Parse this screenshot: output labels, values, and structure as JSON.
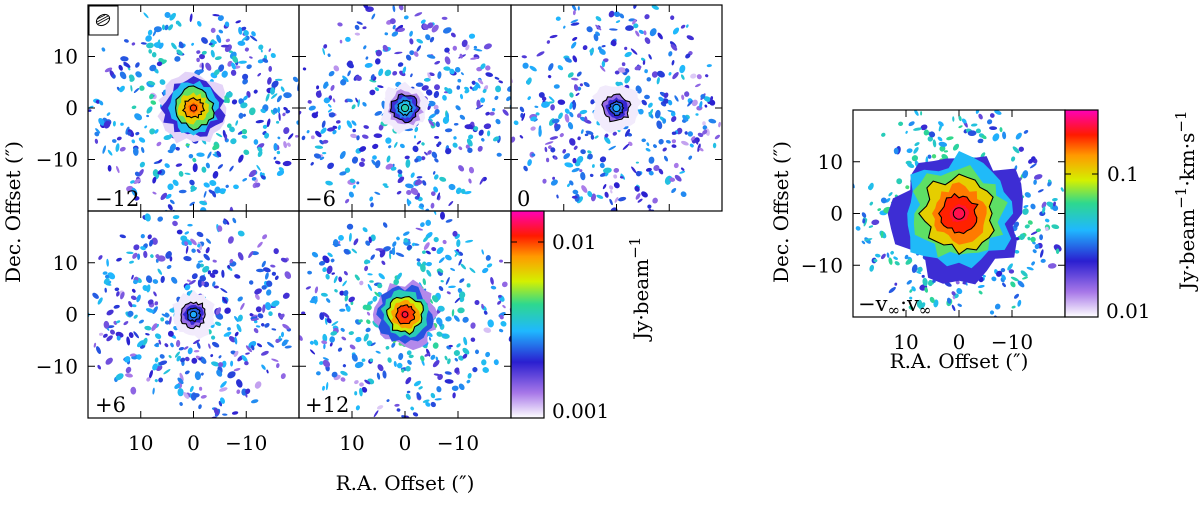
{
  "chart_data": {
    "type": "heatmap",
    "description_units": {
      "x": "arcsec",
      "y": "arcsec"
    },
    "xlabel": "R.A. Offset (″)",
    "ylabel": "Dec. Offset (″)",
    "xlim": [
      20,
      -20
    ],
    "ylim": [
      -20,
      20
    ],
    "x_ticks": [
      10,
      0,
      -10
    ],
    "x_tick_labels": [
      "10",
      "0",
      "−10"
    ],
    "y_ticks": [
      10,
      0,
      -10
    ],
    "y_tick_labels": [
      "10",
      "0",
      "−10"
    ],
    "channel_maps": [
      {
        "label": "−12",
        "velocity": -12,
        "peak": 0.01,
        "radius": 6.5,
        "offset": [
          0,
          0
        ]
      },
      {
        "label": "−6",
        "velocity": -6,
        "peak": 0.004,
        "radius": 7.5,
        "offset": [
          0,
          0
        ]
      },
      {
        "label": "0",
        "velocity": 0,
        "peak": 0.003,
        "radius": 7.5,
        "offset": [
          0,
          0
        ]
      },
      {
        "label": "+6",
        "velocity": 6,
        "peak": 0.003,
        "radius": 7.0,
        "offset": [
          0,
          0
        ]
      },
      {
        "label": "+12",
        "velocity": 12,
        "peak": 0.012,
        "radius": 6.0,
        "offset": [
          0,
          0
        ]
      }
    ],
    "channel_colorbar": {
      "label": "Jy·beam",
      "label_exp": "−1",
      "scale": "log",
      "range": [
        0.001,
        0.015
      ],
      "tick_values": [
        0.001,
        0.01
      ],
      "tick_labels": [
        "0.001",
        "0.01"
      ]
    },
    "moment0": {
      "label": "−v∞:v∞",
      "label_main": "−v",
      "label_sub1": "∞",
      "label_mid": ":v",
      "label_sub2": "∞",
      "peak": 0.2,
      "radius": 12,
      "colorbar": {
        "label": "Jy·beam",
        "label_exp1": "−1",
        "label_mid": "·km·s",
        "label_exp2": "−1",
        "scale": "log",
        "range": [
          0.01,
          0.25
        ],
        "tick_values": [
          0.01,
          0.1
        ],
        "tick_labels": [
          "0.01",
          "0.1"
        ]
      }
    }
  }
}
